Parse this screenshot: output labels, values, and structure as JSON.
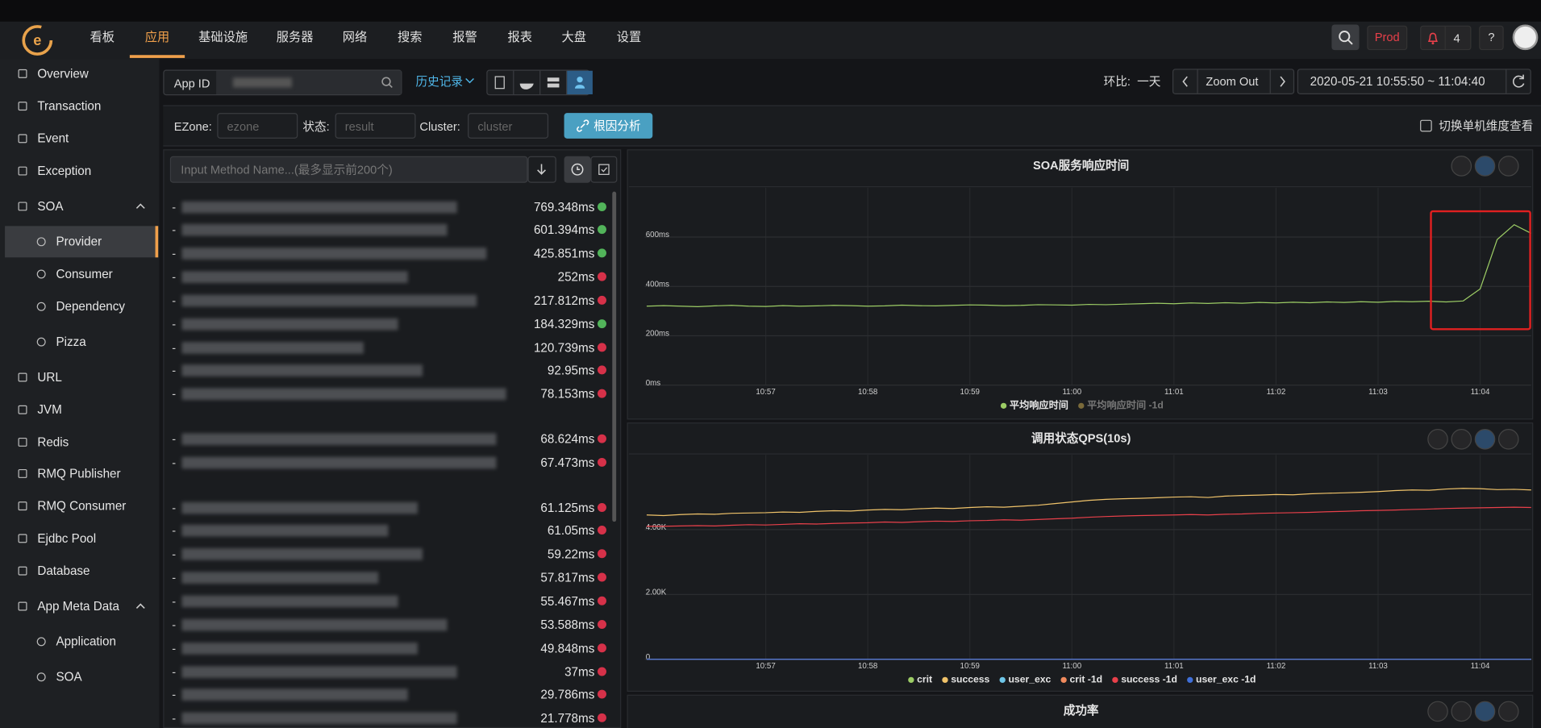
{
  "top_nav": {
    "items": [
      "看板",
      "应用",
      "基础设施",
      "服务器",
      "网络",
      "搜索",
      "报警",
      "报表",
      "大盘",
      "设置"
    ],
    "active": 1,
    "env": "Prod",
    "alert_count": "4",
    "help": "?"
  },
  "sidebar": {
    "items": [
      "Overview",
      "Transaction",
      "Event",
      "Exception",
      "SOA",
      "Provider",
      "Consumer",
      "Dependency",
      "Pizza",
      "URL",
      "JVM",
      "Redis",
      "RMQ Publisher",
      "RMQ Consumer",
      "Ejdbc Pool",
      "Database",
      "App Meta Data",
      "Application",
      "SOA"
    ],
    "active": 5
  },
  "toolbar": {
    "app_id_label": "App ID",
    "history": "历史记录",
    "compare_label": "环比:",
    "compare_value": "一天",
    "zoom": "Zoom Out",
    "time_range": "2020-05-21 10:55:50 ~ 11:04:40"
  },
  "filters": {
    "ezone_label": "EZone:",
    "ezone_placeholder": "ezone",
    "status_label": "状态:",
    "status_placeholder": "result",
    "cluster_label": "Cluster:",
    "cluster_placeholder": "cluster",
    "root_cause": "根因分析",
    "single_toggle": "切换单机维度查看"
  },
  "method_list": {
    "placeholder": "Input Method Name...(最多显示前200个)",
    "items": [
      {
        "value": "769.348ms",
        "color": "#52b45a"
      },
      {
        "value": "601.394ms",
        "color": "#52b45a"
      },
      {
        "value": "425.851ms",
        "color": "#52b45a"
      },
      {
        "value": "252ms",
        "color": "#d63149"
      },
      {
        "value": "217.812ms",
        "color": "#d63149"
      },
      {
        "value": "184.329ms",
        "color": "#52b45a"
      },
      {
        "value": "120.739ms",
        "color": "#d63149"
      },
      {
        "value": "92.95ms",
        "color": "#d63149"
      },
      {
        "value": "78.153ms",
        "color": "#d63149"
      },
      {
        "value": "68.624ms",
        "color": "#d63149"
      },
      {
        "value": "67.473ms",
        "color": "#d63149"
      },
      {
        "value": "61.125ms",
        "color": "#d63149"
      },
      {
        "value": "61.05ms",
        "color": "#d63149"
      },
      {
        "value": "59.22ms",
        "color": "#d63149"
      },
      {
        "value": "57.817ms",
        "color": "#d63149"
      },
      {
        "value": "55.467ms",
        "color": "#d63149"
      },
      {
        "value": "53.588ms",
        "color": "#d63149"
      },
      {
        "value": "49.848ms",
        "color": "#d63149"
      },
      {
        "value": "37ms",
        "color": "#d63149"
      },
      {
        "value": "29.786ms",
        "color": "#d63149"
      },
      {
        "value": "21.778ms",
        "color": "#d63149"
      }
    ]
  },
  "chart_data": [
    {
      "type": "line",
      "title": "SOA服务响应时间",
      "categories": [
        null,
        null,
        null,
        null,
        null,
        null,
        null,
        "10:57",
        null,
        null,
        null,
        null,
        null,
        "10:58",
        null,
        null,
        null,
        null,
        null,
        "10:59",
        null,
        null,
        null,
        null,
        null,
        "11:00",
        null,
        null,
        null,
        null,
        null,
        "11:01",
        null,
        null,
        null,
        null,
        null,
        "11:02",
        null,
        null,
        null,
        null,
        null,
        "11:03",
        null,
        null,
        null,
        null,
        null,
        "11:04",
        null,
        null,
        null
      ],
      "ylim": [
        0,
        800
      ],
      "yticks": [
        {
          "value": 0,
          "label": "0ms"
        },
        {
          "value": 200,
          "label": "200ms"
        },
        {
          "value": 400,
          "label": "400ms"
        },
        {
          "value": 600,
          "label": "600ms"
        }
      ],
      "grid": true,
      "series": [
        {
          "name": "平均响应时间",
          "color": "#9ccc65",
          "values": [
            320,
            322,
            320,
            318,
            321,
            323,
            320,
            319,
            322,
            320,
            321,
            323,
            322,
            320,
            321,
            324,
            322,
            321,
            323,
            325,
            324,
            322,
            323,
            326,
            325,
            324,
            327,
            326,
            328,
            330,
            332,
            330,
            333,
            331,
            334,
            332,
            335,
            333,
            336,
            334,
            337,
            335,
            338,
            336,
            339,
            338,
            340,
            337,
            341,
            390,
            590,
            650,
            615
          ]
        },
        {
          "name": "平均响应时间 -1d",
          "color": "#7a6a3a",
          "values": [
            null,
            null,
            null,
            null,
            null,
            null,
            null,
            null,
            null,
            null,
            null,
            null,
            null,
            null,
            null,
            null,
            null,
            null,
            null,
            null,
            null,
            null,
            null,
            null,
            null,
            null,
            null,
            null,
            null,
            null,
            null,
            null,
            null,
            null,
            null,
            null,
            null,
            null,
            null,
            null,
            null,
            null,
            null,
            null,
            null,
            null,
            null,
            null,
            null,
            null,
            null,
            null,
            null
          ]
        }
      ]
    },
    {
      "type": "line",
      "title": "调用状态QPS(10s)",
      "categories": [
        null,
        null,
        null,
        null,
        null,
        null,
        null,
        "10:57",
        null,
        null,
        null,
        null,
        null,
        "10:58",
        null,
        null,
        null,
        null,
        null,
        "10:59",
        null,
        null,
        null,
        null,
        null,
        "11:00",
        null,
        null,
        null,
        null,
        null,
        "11:01",
        null,
        null,
        null,
        null,
        null,
        "11:02",
        null,
        null,
        null,
        null,
        null,
        "11:03",
        null,
        null,
        null,
        null,
        null,
        "11:04",
        null,
        null,
        null
      ],
      "ylim": [
        0,
        6300
      ],
      "yticks": [
        0,
        {
          "value": 2000,
          "label": "2.00K"
        },
        {
          "value": 4000,
          "label": "4.00K"
        }
      ],
      "grid": true,
      "series": [
        {
          "name": "crit",
          "color": "#9ccc65",
          "values": [
            0,
            0,
            0,
            0,
            0,
            0,
            0,
            0,
            0,
            0,
            0,
            0,
            0,
            0,
            0,
            0,
            0,
            0,
            0,
            0,
            0,
            0,
            0,
            0,
            0,
            0,
            0,
            0,
            0,
            0,
            0,
            0,
            0,
            0,
            0,
            0,
            0,
            0,
            0,
            0,
            0,
            0,
            0,
            0,
            0,
            0,
            0,
            0,
            0,
            0,
            0,
            0,
            0
          ]
        },
        {
          "name": "success",
          "color": "#f0c36a",
          "values": [
            4450,
            4430,
            4460,
            4480,
            4470,
            4500,
            4510,
            4520,
            4540,
            4530,
            4560,
            4580,
            4570,
            4600,
            4620,
            4610,
            4640,
            4660,
            4650,
            4680,
            4700,
            4690,
            4720,
            4750,
            4800,
            4850,
            4900,
            4930,
            4950,
            4960,
            4980,
            5000,
            5010,
            4990,
            5030,
            5050,
            5060,
            5080,
            5070,
            5100,
            5120,
            5130,
            5150,
            5170,
            5200,
            5220,
            5210,
            5250,
            5270,
            5260,
            5230,
            5240,
            5220
          ]
        },
        {
          "name": "user_exc",
          "color": "#6ec6e8",
          "values": [
            0,
            0,
            0,
            0,
            0,
            0,
            0,
            0,
            0,
            0,
            0,
            0,
            0,
            0,
            0,
            0,
            0,
            0,
            0,
            0,
            0,
            0,
            0,
            0,
            0,
            0,
            0,
            0,
            0,
            0,
            0,
            0,
            0,
            0,
            0,
            0,
            0,
            0,
            0,
            0,
            0,
            0,
            0,
            0,
            0,
            0,
            0,
            0,
            0,
            0,
            0,
            0,
            0
          ]
        },
        {
          "name": "crit -1d",
          "color": "#f08a5d",
          "values": [
            0,
            0,
            0,
            0,
            0,
            0,
            0,
            0,
            0,
            0,
            0,
            0,
            0,
            0,
            0,
            0,
            0,
            0,
            0,
            0,
            0,
            0,
            0,
            0,
            0,
            0,
            0,
            0,
            0,
            0,
            0,
            0,
            0,
            0,
            0,
            0,
            0,
            0,
            0,
            0,
            0,
            0,
            0,
            0,
            0,
            0,
            0,
            0,
            0,
            0,
            0,
            0,
            0
          ]
        },
        {
          "name": "success -1d",
          "color": "#e8404a",
          "values": [
            4100,
            4100,
            4110,
            4120,
            4110,
            4130,
            4150,
            4140,
            4160,
            4180,
            4170,
            4190,
            4200,
            4210,
            4230,
            4220,
            4240,
            4260,
            4250,
            4270,
            4280,
            4300,
            4290,
            4310,
            4330,
            4350,
            4380,
            4400,
            4420,
            4430,
            4440,
            4450,
            4460,
            4450,
            4470,
            4480,
            4500,
            4510,
            4520,
            4530,
            4550,
            4560,
            4580,
            4590,
            4600,
            4620,
            4630,
            4650,
            4660,
            4670,
            4680,
            4690,
            4680
          ]
        },
        {
          "name": "user_exc -1d",
          "color": "#3f6fd8",
          "values": [
            0,
            0,
            0,
            0,
            0,
            0,
            0,
            0,
            0,
            0,
            0,
            0,
            0,
            0,
            0,
            0,
            0,
            0,
            0,
            0,
            0,
            0,
            0,
            0,
            0,
            0,
            0,
            0,
            0,
            0,
            0,
            0,
            0,
            0,
            0,
            0,
            0,
            0,
            0,
            0,
            0,
            0,
            0,
            0,
            0,
            0,
            0,
            0,
            0,
            0,
            0,
            0,
            0
          ]
        }
      ]
    },
    {
      "type": "line",
      "title": "成功率"
    }
  ]
}
